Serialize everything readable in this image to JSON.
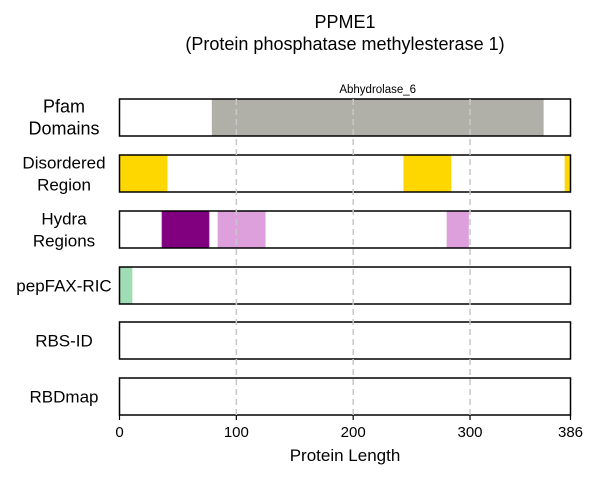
{
  "chart_data": {
    "type": "bar",
    "title": "PPME1",
    "subtitle": "(Protein phosphatase methylesterase 1)",
    "xlabel": "Protein Length",
    "xlim": [
      0,
      386
    ],
    "xticks": [
      0,
      100,
      200,
      300,
      386
    ],
    "gridlines": [
      100,
      200,
      300
    ],
    "tracks": [
      {
        "label_lines": [
          "Pfam",
          "Domains"
        ],
        "segments": [
          {
            "start": 79,
            "end": 363,
            "color": "#b0b0a8",
            "label": "Abhydrolase_6"
          }
        ]
      },
      {
        "label_lines": [
          "Disordered",
          "Region"
        ],
        "segments": [
          {
            "start": 0,
            "end": 41,
            "color": "#ffd700"
          },
          {
            "start": 243,
            "end": 284,
            "color": "#ffd700"
          },
          {
            "start": 381,
            "end": 386,
            "color": "#ffd700"
          }
        ]
      },
      {
        "label_lines": [
          "Hydra",
          "Regions"
        ],
        "segments": [
          {
            "start": 36,
            "end": 77,
            "color": "#800080"
          },
          {
            "start": 84,
            "end": 125,
            "color": "#dda0dd"
          },
          {
            "start": 280,
            "end": 299,
            "color": "#dda0dd"
          }
        ]
      },
      {
        "label_lines": [
          "pepFAX-RIC"
        ],
        "segments": [
          {
            "start": 0,
            "end": 11,
            "color": "#a0dcb4"
          }
        ]
      },
      {
        "label_lines": [
          "RBS-ID"
        ],
        "segments": []
      },
      {
        "label_lines": [
          "RBDmap"
        ],
        "segments": []
      }
    ]
  }
}
